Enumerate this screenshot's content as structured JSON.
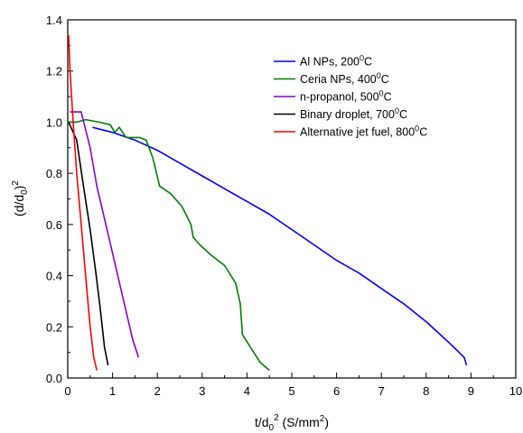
{
  "chart_data": {
    "type": "line",
    "xlabel": "t/d0^2 (S/mm^2)",
    "xlabel_parts": {
      "base": "t/d",
      "sub": "0",
      "sup": "2",
      "unit": " (S/mm",
      "unit_sup": "2",
      "unit_end": ")"
    },
    "ylabel": "(d/d0)^2",
    "ylabel_parts": {
      "base": "(d/d",
      "sub": "0",
      "close": ")",
      "sup": "2"
    },
    "xlim": [
      0,
      10
    ],
    "ylim": [
      0,
      1.4
    ],
    "xticks": [
      "0",
      "1",
      "2",
      "3",
      "4",
      "5",
      "6",
      "7",
      "8",
      "9",
      "10"
    ],
    "yticks": [
      "0.0",
      "0.2",
      "0.4",
      "0.6",
      "0.8",
      "1.0",
      "1.2",
      "1.4"
    ],
    "grid": false,
    "legend_position": "top-right",
    "series": [
      {
        "name": "Al NPs, 200°C",
        "label_parts": {
          "main": "Al NPs, 200",
          "sup": "0",
          "end": "C"
        },
        "color": "#0000ff",
        "points": [
          [
            0.55,
            0.98
          ],
          [
            1.0,
            0.96
          ],
          [
            1.5,
            0.93
          ],
          [
            2.0,
            0.89
          ],
          [
            2.5,
            0.84
          ],
          [
            3.0,
            0.79
          ],
          [
            3.5,
            0.74
          ],
          [
            4.0,
            0.69
          ],
          [
            4.5,
            0.64
          ],
          [
            5.0,
            0.58
          ],
          [
            5.5,
            0.52
          ],
          [
            6.0,
            0.46
          ],
          [
            6.5,
            0.41
          ],
          [
            7.0,
            0.35
          ],
          [
            7.5,
            0.29
          ],
          [
            8.0,
            0.22
          ],
          [
            8.5,
            0.14
          ],
          [
            8.85,
            0.08
          ],
          [
            8.9,
            0.05
          ]
        ]
      },
      {
        "name": "Ceria NPs, 400°C",
        "label_parts": {
          "main": "Ceria NPs, 400",
          "sup": "0",
          "end": "C"
        },
        "color": "#008000",
        "points": [
          [
            0.0,
            1.0
          ],
          [
            0.2,
            1.0
          ],
          [
            0.4,
            1.01
          ],
          [
            0.7,
            1.0
          ],
          [
            0.95,
            0.99
          ],
          [
            1.05,
            0.96
          ],
          [
            1.15,
            0.98
          ],
          [
            1.3,
            0.94
          ],
          [
            1.6,
            0.94
          ],
          [
            1.75,
            0.93
          ],
          [
            1.9,
            0.86
          ],
          [
            2.05,
            0.75
          ],
          [
            2.3,
            0.72
          ],
          [
            2.55,
            0.67
          ],
          [
            2.75,
            0.6
          ],
          [
            2.8,
            0.55
          ],
          [
            2.95,
            0.52
          ],
          [
            3.2,
            0.48
          ],
          [
            3.5,
            0.44
          ],
          [
            3.75,
            0.37
          ],
          [
            3.85,
            0.29
          ],
          [
            3.9,
            0.17
          ],
          [
            4.15,
            0.1
          ],
          [
            4.3,
            0.06
          ],
          [
            4.5,
            0.03
          ]
        ]
      },
      {
        "name": "n-propanol, 500°C",
        "label_parts": {
          "main": "n-propanol, 500",
          "sup": "0",
          "end": "C"
        },
        "color": "#8a00d4",
        "points": [
          [
            0.05,
            1.04
          ],
          [
            0.3,
            1.04
          ],
          [
            0.5,
            0.9
          ],
          [
            0.65,
            0.75
          ],
          [
            0.85,
            0.6
          ],
          [
            1.05,
            0.45
          ],
          [
            1.25,
            0.3
          ],
          [
            1.45,
            0.15
          ],
          [
            1.58,
            0.08
          ]
        ]
      },
      {
        "name": "Binary droplet, 700°C",
        "label_parts": {
          "main": "Binary droplet, 700",
          "sup": "0",
          "end": "C"
        },
        "color": "#000000",
        "points": [
          [
            0.02,
            1.0
          ],
          [
            0.2,
            0.93
          ],
          [
            0.35,
            0.75
          ],
          [
            0.5,
            0.58
          ],
          [
            0.62,
            0.42
          ],
          [
            0.72,
            0.28
          ],
          [
            0.82,
            0.12
          ],
          [
            0.9,
            0.05
          ]
        ]
      },
      {
        "name": "Alternative jet fuel, 800°C",
        "label_parts": {
          "main": "Alternative jet fuel, 800",
          "sup": "0",
          "end": "C"
        },
        "color": "#ff0000",
        "points": [
          [
            0.02,
            1.34
          ],
          [
            0.05,
            1.2
          ],
          [
            0.12,
            1.0
          ],
          [
            0.2,
            0.8
          ],
          [
            0.3,
            0.6
          ],
          [
            0.4,
            0.4
          ],
          [
            0.5,
            0.2
          ],
          [
            0.58,
            0.08
          ],
          [
            0.65,
            0.03
          ]
        ]
      }
    ]
  }
}
